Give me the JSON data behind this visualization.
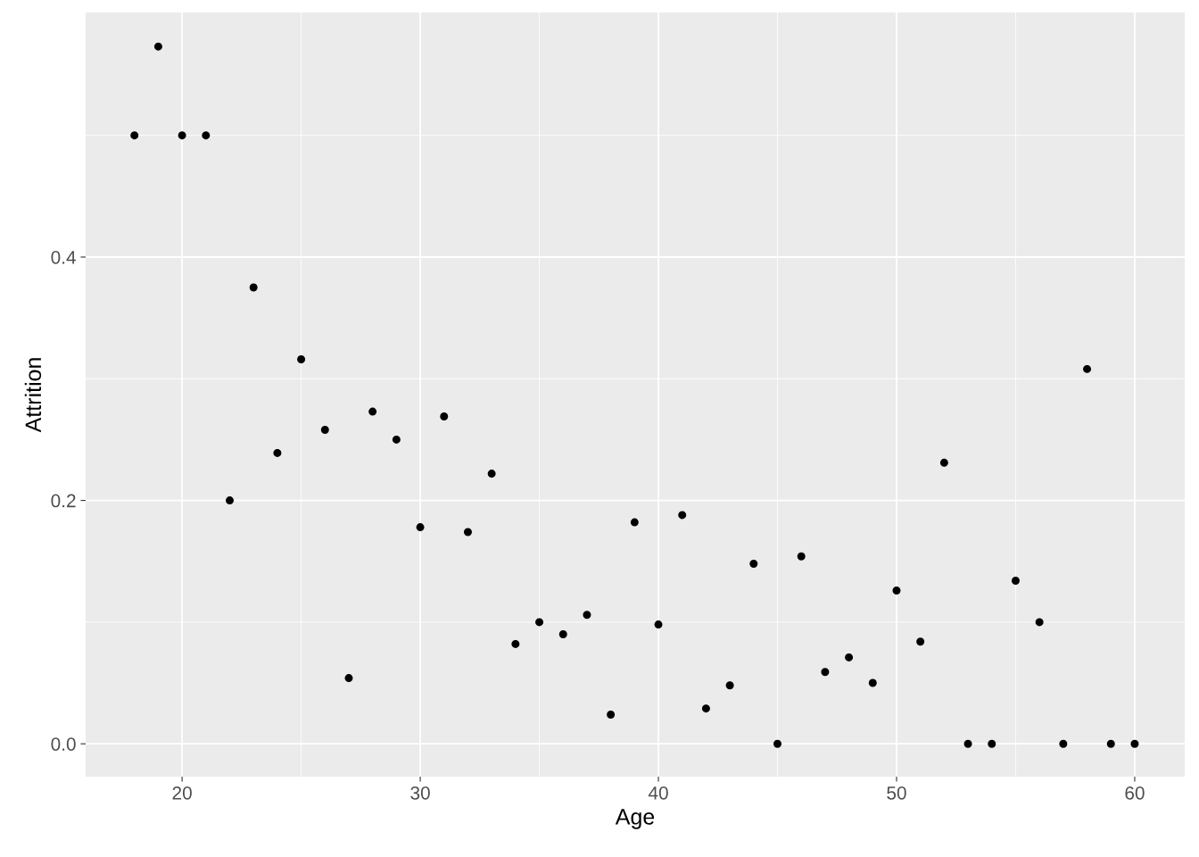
{
  "chart_data": {
    "type": "scatter",
    "xlabel": "Age",
    "ylabel": "Attrition",
    "x": [
      18,
      19,
      20,
      21,
      22,
      23,
      24,
      25,
      26,
      27,
      28,
      29,
      30,
      31,
      32,
      33,
      34,
      35,
      36,
      37,
      38,
      39,
      40,
      41,
      42,
      43,
      44,
      45,
      46,
      47,
      48,
      49,
      50,
      51,
      52,
      53,
      54,
      55,
      56,
      57,
      58,
      59,
      60
    ],
    "series": [
      {
        "color": "#000000",
        "values": [
          0.5,
          0.573,
          0.5,
          0.5,
          0.2,
          0.375,
          0.239,
          0.316,
          0.258,
          0.054,
          0.273,
          0.25,
          0.178,
          0.269,
          0.174,
          0.222,
          0.082,
          0.1,
          0.09,
          0.106,
          0.024,
          0.182,
          0.098,
          0.188,
          0.029,
          0.048,
          0.148,
          0,
          0.154,
          0.059,
          0.071,
          0.05,
          0.126,
          0.084,
          0.231,
          0,
          0,
          0.134,
          0.1,
          0,
          0.308,
          0,
          0
        ]
      }
    ],
    "xlim": [
      15.95,
      62.1
    ],
    "ylim": [
      -0.027,
      0.601
    ],
    "xticks": [
      20,
      30,
      40,
      50,
      60
    ],
    "yticks": [
      {
        "value": 0,
        "label": "0.0"
      },
      {
        "value": 0.2,
        "label": "0.2"
      },
      {
        "value": 0.4,
        "label": "0.4"
      }
    ],
    "grid": true,
    "marker": "circle"
  }
}
